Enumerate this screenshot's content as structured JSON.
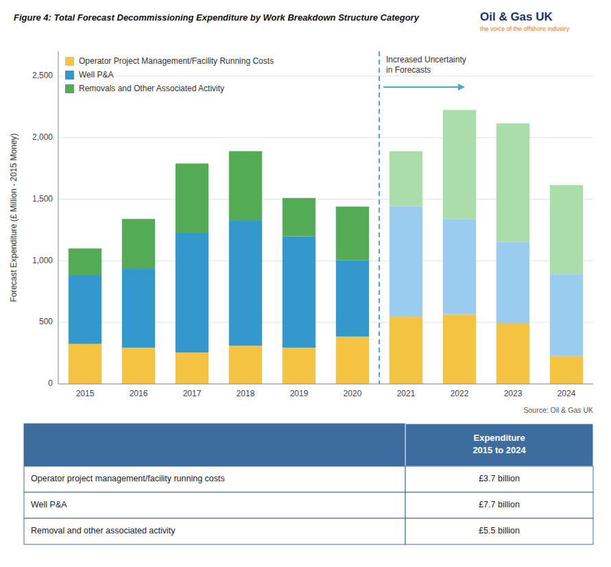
{
  "chart_data": {
    "type": "bar",
    "stacked": true,
    "title": "Figure 4: Total Forecast Decommissioning Expenditure by Work Breakdown Structure Category",
    "ylabel": "Forecast Expenditure (£ Million - 2015 Money)",
    "source": "Source: Oil & Gas UK",
    "logo_text": [
      "Oil & Gas UK",
      "the voice of the offshore industry"
    ],
    "categories": [
      "2015",
      "2016",
      "2017",
      "2018",
      "2019",
      "2020",
      "2021",
      "2022",
      "2023",
      "2024"
    ],
    "series": [
      {
        "name": "Operator Project Management/Facility Running Costs",
        "color": "#F5C342",
        "values": [
          325,
          295,
          255,
          310,
          295,
          385,
          545,
          565,
          490,
          225
        ]
      },
      {
        "name": "Well P&A",
        "color": "#3399CC",
        "colors": [
          "#3399CC",
          "#3399CC",
          "#3399CC",
          "#3399CC",
          "#3399CC",
          "#3399CC",
          "#99CCEE",
          "#99CCEE",
          "#99CCEE",
          "#99CCEE"
        ],
        "values": [
          560,
          640,
          975,
          1020,
          905,
          620,
          900,
          775,
          665,
          665
        ]
      },
      {
        "name": "Removals and Other Associated Activity",
        "color": "#55AA55",
        "colors": [
          "#55AA55",
          "#55AA55",
          "#55AA55",
          "#55AA55",
          "#55AA55",
          "#55AA55",
          "#AADDAA",
          "#AADDAA",
          "#AADDAA",
          "#AADDAA"
        ],
        "values": [
          215,
          405,
          560,
          560,
          310,
          435,
          445,
          885,
          960,
          725
        ]
      }
    ],
    "ylim": [
      0,
      2700
    ],
    "yticks": [
      0,
      500,
      {
        "value": 1000,
        "label": "1,000"
      },
      {
        "value": 1500,
        "label": "1,500"
      },
      {
        "value": 2000,
        "label": "2,000"
      },
      {
        "value": 2500,
        "label": "2,500"
      }
    ],
    "grid": true,
    "legend": "upper left",
    "annotations": [
      {
        "text": "Increased Uncertainty\nin Forecasts",
        "color": "#44AACC"
      }
    ],
    "table": {
      "color": "#3D6D9E",
      "header": "Expenditure\n2015 to 2024",
      "rows": [
        [
          "Operator project management/facility running costs",
          "£3.7 billion"
        ],
        [
          "Well P&A",
          "£7.7 billion"
        ],
        [
          "Removal and other associated activity",
          "£5.5 billion"
        ]
      ]
    }
  }
}
